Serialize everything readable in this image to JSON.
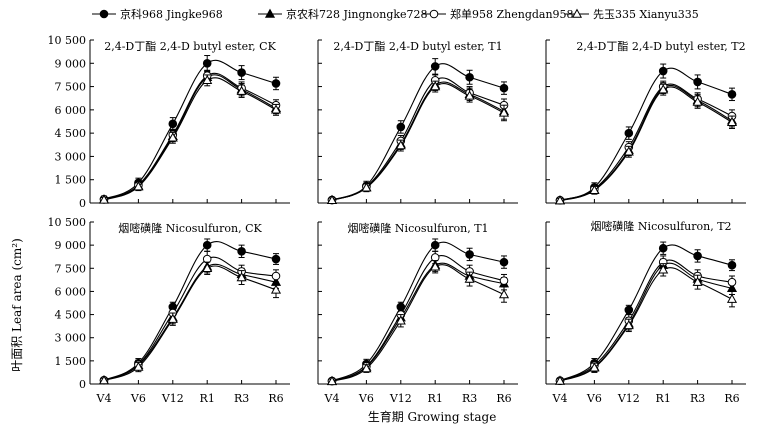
{
  "legend": [
    {
      "series_index": 0,
      "label": "京科968 Jingke968"
    },
    {
      "series_index": 1,
      "label": "京农科728 Jingnongke728"
    },
    {
      "series_index": 2,
      "label": "郑单958 Zhengdan958"
    },
    {
      "series_index": 3,
      "label": "先玉335 Xianyu335"
    }
  ],
  "axes": {
    "ylabel": "叶面积 Leaf area (cm²)",
    "xlabel": "生育期 Growing stage"
  },
  "chart_data": [
    {
      "type": "line",
      "title": "2,4-D丁酯  2,4-D butyl ester, CK",
      "categories": [
        "V4",
        "V6",
        "V12",
        "R1",
        "R3",
        "R6"
      ],
      "ylim": [
        0,
        10500
      ],
      "yticks": [
        "0",
        "1 500",
        "3 000",
        "4 500",
        "6 000",
        "7 500",
        "9 000",
        "10 500"
      ],
      "series": [
        {
          "name": "京科968 Jingke968",
          "marker": "circle-filled",
          "values": [
            250,
            1300,
            5100,
            9000,
            8400,
            7700
          ],
          "errors": [
            200,
            300,
            400,
            500,
            450,
            400
          ]
        },
        {
          "name": "京农科728 Jingnongke728",
          "marker": "triangle-filled",
          "values": [
            220,
            1100,
            4300,
            8100,
            7300,
            6100
          ],
          "errors": [
            150,
            250,
            350,
            350,
            400,
            350
          ]
        },
        {
          "name": "郑单958 Zhengdan958",
          "marker": "circle-open",
          "values": [
            230,
            1150,
            4400,
            8200,
            7400,
            6300
          ],
          "errors": [
            150,
            250,
            350,
            350,
            400,
            350
          ]
        },
        {
          "name": "先玉335 Xianyu335",
          "marker": "triangle-open",
          "values": [
            200,
            1050,
            4200,
            7900,
            7200,
            6000
          ],
          "errors": [
            150,
            250,
            350,
            350,
            400,
            350
          ]
        }
      ]
    },
    {
      "type": "line",
      "title": "2,4-D丁酯  2,4-D butyl ester, T1",
      "categories": [
        "V4",
        "V6",
        "V12",
        "R1",
        "R3",
        "R6"
      ],
      "ylim": [
        0,
        10500
      ],
      "yticks": [
        "0",
        "1 500",
        "3 000",
        "4 500",
        "6 000",
        "7 500",
        "9 000",
        "10 500"
      ],
      "series": [
        {
          "name": "京科968 Jingke968",
          "marker": "circle-filled",
          "values": [
            200,
            1100,
            4900,
            8800,
            8100,
            7400
          ],
          "errors": [
            150,
            300,
            400,
            500,
            450,
            400
          ]
        },
        {
          "name": "京农科728 Jingnongke728",
          "marker": "triangle-filled",
          "values": [
            180,
            1000,
            3800,
            7600,
            7000,
            5900
          ],
          "errors": [
            150,
            250,
            350,
            350,
            400,
            500
          ]
        },
        {
          "name": "郑单958 Zhengdan958",
          "marker": "circle-open",
          "values": [
            190,
            1050,
            4000,
            7900,
            7100,
            6300
          ],
          "errors": [
            150,
            250,
            350,
            350,
            400,
            400
          ]
        },
        {
          "name": "先玉335 Xianyu335",
          "marker": "triangle-open",
          "values": [
            170,
            980,
            3700,
            7500,
            6900,
            5800
          ],
          "errors": [
            150,
            250,
            350,
            350,
            400,
            500
          ]
        }
      ]
    },
    {
      "type": "line",
      "title": "2,4-D丁酯  2,4-D butyl ester, T2",
      "categories": [
        "V4",
        "V6",
        "V12",
        "R1",
        "R3",
        "R6"
      ],
      "ylim": [
        0,
        10500
      ],
      "yticks": [
        "0",
        "1 500",
        "3 000",
        "4 500",
        "6 000",
        "7 500",
        "9 000",
        "10 500"
      ],
      "series": [
        {
          "name": "京科968 Jingke968",
          "marker": "circle-filled",
          "values": [
            180,
            1000,
            4500,
            8500,
            7800,
            7000
          ],
          "errors": [
            150,
            300,
            400,
            450,
            450,
            400
          ]
        },
        {
          "name": "京农科728 Jingnongke728",
          "marker": "triangle-filled",
          "values": [
            160,
            850,
            3400,
            7400,
            6600,
            5300
          ],
          "errors": [
            150,
            250,
            350,
            350,
            400,
            400
          ]
        },
        {
          "name": "郑单958 Zhengdan958",
          "marker": "circle-open",
          "values": [
            170,
            900,
            3600,
            7500,
            6700,
            5600
          ],
          "errors": [
            150,
            250,
            350,
            350,
            400,
            400
          ]
        },
        {
          "name": "先玉335 Xianyu335",
          "marker": "triangle-open",
          "values": [
            150,
            820,
            3300,
            7300,
            6500,
            5200
          ],
          "errors": [
            150,
            250,
            350,
            350,
            400,
            400
          ]
        }
      ]
    },
    {
      "type": "line",
      "title": "烟嘧磺隆  Nicosulfuron, CK",
      "categories": [
        "V4",
        "V6",
        "V12",
        "R1",
        "R3",
        "R6"
      ],
      "ylim": [
        0,
        10500
      ],
      "yticks": [
        "0",
        "1 500",
        "3 000",
        "4 500",
        "6 000",
        "7 500",
        "9 000",
        "10 500"
      ],
      "series": [
        {
          "name": "京科968 Jingke968",
          "marker": "circle-filled",
          "values": [
            250,
            1350,
            5000,
            9000,
            8600,
            8100
          ],
          "errors": [
            150,
            300,
            300,
            400,
            400,
            350
          ]
        },
        {
          "name": "京农科728 Jingnongke728",
          "marker": "triangle-filled",
          "values": [
            230,
            1200,
            4300,
            7600,
            7100,
            6600
          ],
          "errors": [
            150,
            300,
            400,
            400,
            400,
            400
          ]
        },
        {
          "name": "郑单958 Zhengdan958",
          "marker": "circle-open",
          "values": [
            240,
            1250,
            4600,
            8100,
            7300,
            7000
          ],
          "errors": [
            150,
            300,
            400,
            500,
            400,
            400
          ]
        },
        {
          "name": "先玉335 Xianyu335",
          "marker": "triangle-open",
          "values": [
            220,
            1100,
            4200,
            7500,
            6900,
            6100
          ],
          "errors": [
            150,
            300,
            400,
            400,
            450,
            500
          ]
        }
      ]
    },
    {
      "type": "line",
      "title": "烟嘧磺隆  Nicosulfuron, T1",
      "categories": [
        "V4",
        "V6",
        "V12",
        "R1",
        "R3",
        "R6"
      ],
      "ylim": [
        0,
        10500
      ],
      "yticks": [
        "0",
        "1 500",
        "3 000",
        "4 500",
        "6 000",
        "7 500",
        "9 000",
        "10 500"
      ],
      "series": [
        {
          "name": "京科968 Jingke968",
          "marker": "circle-filled",
          "values": [
            200,
            1300,
            5000,
            9000,
            8400,
            7900
          ],
          "errors": [
            150,
            300,
            300,
            400,
            400,
            400
          ]
        },
        {
          "name": "京农科728 Jingnongke728",
          "marker": "triangle-filled",
          "values": [
            180,
            1100,
            4300,
            7700,
            7000,
            6500
          ],
          "errors": [
            150,
            250,
            400,
            400,
            400,
            400
          ]
        },
        {
          "name": "郑单958 Zhengdan958",
          "marker": "circle-open",
          "values": [
            190,
            1150,
            4500,
            8200,
            7300,
            6700
          ],
          "errors": [
            150,
            250,
            400,
            400,
            400,
            400
          ]
        },
        {
          "name": "先玉335 Xianyu335",
          "marker": "triangle-open",
          "values": [
            170,
            1000,
            4100,
            7600,
            6800,
            5800
          ],
          "errors": [
            150,
            250,
            400,
            400,
            450,
            500
          ]
        }
      ]
    },
    {
      "type": "line",
      "title": "烟嘧磺隆  Nicosulfuron, T2",
      "categories": [
        "V4",
        "V6",
        "V12",
        "R1",
        "R3",
        "R6"
      ],
      "ylim": [
        0,
        10500
      ],
      "yticks": [
        "0",
        "1 500",
        "3 000",
        "4 500",
        "6 000",
        "7 500",
        "9 000",
        "10 500"
      ],
      "series": [
        {
          "name": "京科968 Jingke968",
          "marker": "circle-filled",
          "values": [
            220,
            1350,
            4800,
            8800,
            8300,
            7700
          ],
          "errors": [
            150,
            300,
            300,
            400,
            400,
            350
          ]
        },
        {
          "name": "京农科728 Jingnongke728",
          "marker": "triangle-filled",
          "values": [
            200,
            1100,
            3900,
            7700,
            6800,
            6200
          ],
          "errors": [
            150,
            300,
            400,
            400,
            400,
            400
          ]
        },
        {
          "name": "郑单958 Zhengdan958",
          "marker": "circle-open",
          "values": [
            210,
            1200,
            4100,
            7900,
            7000,
            6600
          ],
          "errors": [
            150,
            300,
            400,
            400,
            400,
            400
          ]
        },
        {
          "name": "先玉335 Xianyu335",
          "marker": "triangle-open",
          "values": [
            190,
            1050,
            3800,
            7400,
            6600,
            5500
          ],
          "errors": [
            150,
            300,
            400,
            400,
            450,
            500
          ]
        }
      ]
    }
  ]
}
